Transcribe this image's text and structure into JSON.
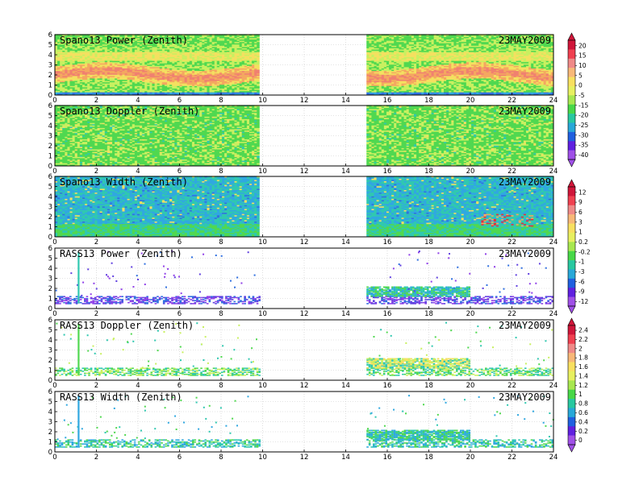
{
  "chart_data": [
    {
      "type": "heatmap",
      "title": "Spano13 Power (Zenith)",
      "date": "23MAY2009",
      "xlim": [
        0,
        24
      ],
      "ylim": [
        0,
        6
      ],
      "xticks": [
        0,
        2,
        4,
        6,
        8,
        10,
        12,
        14,
        16,
        18,
        20,
        22,
        24
      ],
      "yticks": [
        0,
        1,
        2,
        3,
        4,
        5,
        6
      ],
      "data_time_ranges": [
        [
          0,
          9.8
        ],
        [
          15,
          24
        ]
      ],
      "pattern": "power",
      "grid": true
    },
    {
      "type": "heatmap",
      "title": "Spano13 Doppler (Zenith)",
      "date": "23MAY2009",
      "xlim": [
        0,
        24
      ],
      "ylim": [
        0,
        6
      ],
      "xticks": [
        0,
        2,
        4,
        6,
        8,
        10,
        12,
        14,
        16,
        18,
        20,
        22,
        24
      ],
      "yticks": [
        0,
        1,
        2,
        3,
        4,
        5,
        6
      ],
      "data_time_ranges": [
        [
          0,
          9.8
        ],
        [
          15,
          24
        ]
      ],
      "pattern": "doppler",
      "grid": true
    },
    {
      "type": "heatmap",
      "title": "Spano13 Width (Zenith)",
      "date": "23MAY2009",
      "xlim": [
        0,
        24
      ],
      "ylim": [
        0,
        6
      ],
      "xticks": [
        0,
        2,
        4,
        6,
        8,
        10,
        12,
        14,
        16,
        18,
        20,
        22,
        24
      ],
      "yticks": [
        0,
        1,
        2,
        3,
        4,
        5,
        6
      ],
      "data_time_ranges": [
        [
          0,
          9.8
        ],
        [
          15,
          24
        ]
      ],
      "pattern": "width",
      "grid": true
    },
    {
      "type": "heatmap",
      "title": "RASS13 Power (Zenith)",
      "date": "23MAY2009",
      "xlim": [
        0,
        24
      ],
      "ylim": [
        0,
        6
      ],
      "xticks": [
        0,
        2,
        4,
        6,
        8,
        10,
        12,
        14,
        16,
        18,
        20,
        22,
        24
      ],
      "yticks": [
        0,
        1,
        2,
        3,
        4,
        5,
        6
      ],
      "data_time_ranges": [
        [
          0,
          9.8
        ],
        [
          15,
          24
        ]
      ],
      "pattern": "rass_power",
      "grid": true
    },
    {
      "type": "heatmap",
      "title": "RASS13 Doppler (Zenith)",
      "date": "23MAY2009",
      "xlim": [
        0,
        24
      ],
      "ylim": [
        0,
        6
      ],
      "xticks": [
        0,
        2,
        4,
        6,
        8,
        10,
        12,
        14,
        16,
        18,
        20,
        22,
        24
      ],
      "yticks": [
        0,
        1,
        2,
        3,
        4,
        5,
        6
      ],
      "data_time_ranges": [
        [
          0,
          9.8
        ],
        [
          15,
          24
        ]
      ],
      "pattern": "rass_doppler",
      "grid": true
    },
    {
      "type": "heatmap",
      "title": "RASS13 Width (Zenith)",
      "date": "23MAY2009",
      "xlim": [
        0,
        24
      ],
      "ylim": [
        0,
        6
      ],
      "xticks": [
        0,
        2,
        4,
        6,
        8,
        10,
        12,
        14,
        16,
        18,
        20,
        22,
        24
      ],
      "yticks": [
        0,
        1,
        2,
        3,
        4,
        5,
        6
      ],
      "data_time_ranges": [
        [
          0,
          9.8
        ],
        [
          15,
          24
        ]
      ],
      "pattern": "rass_width",
      "grid": true
    }
  ],
  "colorbars": [
    {
      "labels": [
        "20",
        "15",
        "10",
        "5",
        "0",
        "-5",
        "-15",
        "-20",
        "-25",
        "-30",
        "-35",
        "-40"
      ],
      "colors": [
        "#d0163a",
        "#f04050",
        "#f08a88",
        "#f8b878",
        "#f8e060",
        "#e8f060",
        "#a8e850",
        "#48d848",
        "#28c8a0",
        "#28a8d8",
        "#2060e0",
        "#6020e0",
        "#a050e8"
      ]
    },
    {
      "labels": [
        "12",
        "9",
        "6",
        "3",
        "1",
        "0.2",
        "-0.2",
        "-1",
        "-3",
        "-6",
        "-9",
        "-12"
      ],
      "colors": [
        "#d0163a",
        "#f04050",
        "#f08a88",
        "#f8b878",
        "#f8e060",
        "#e8f060",
        "#a8e850",
        "#48d848",
        "#28c8a0",
        "#28a8d8",
        "#2060e0",
        "#6020e0",
        "#a050e8"
      ]
    },
    {
      "labels": [
        "2.4",
        "2.2",
        "2",
        "1.8",
        "1.6",
        "1.4",
        "1.2",
        "1",
        "0.8",
        "0.6",
        "0.4",
        "0.2",
        "0"
      ],
      "colors": [
        "#d0163a",
        "#f04050",
        "#f08a88",
        "#f8b878",
        "#f8e060",
        "#e8f060",
        "#a8e850",
        "#48d848",
        "#28c8a0",
        "#28a8d8",
        "#2060e0",
        "#6020e0",
        "#a050e8"
      ]
    }
  ]
}
